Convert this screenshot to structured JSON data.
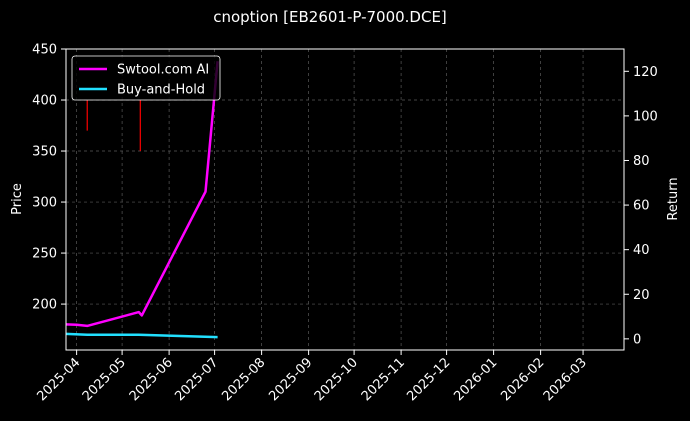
{
  "chart_data": {
    "type": "line",
    "title": "cnoption [EB2601-P-7000.DCE]",
    "ylabel": "Price",
    "y2label": "Return",
    "ylim": [
      155,
      450
    ],
    "y2lim": [
      -5,
      130
    ],
    "xlim": [
      "2025-03-25",
      "2026-03-28"
    ],
    "yticks": [
      200,
      250,
      300,
      350,
      400,
      450
    ],
    "yticks_extra": [],
    "y2ticks": [
      0,
      20,
      40,
      60,
      80,
      100,
      120
    ],
    "xticks": [
      "2025-04",
      "2025-05",
      "2025-06",
      "2025-07",
      "2025-08",
      "2025-09",
      "2025-10",
      "2025-11",
      "2025-12",
      "2026-01",
      "2026-02",
      "2026-03"
    ],
    "grid": true,
    "legend_position": "top-left",
    "series": [
      {
        "name": "Swtool.com AI",
        "axis": "right",
        "color": "#ff00ff",
        "x": [
          "2025-03-25",
          "2025-04-01",
          "2025-04-08",
          "2025-05-12",
          "2025-05-14",
          "2025-06-25",
          "2025-07-03"
        ],
        "values": [
          6.5,
          6.3,
          5.8,
          12.0,
          10.5,
          66.0,
          124.5
        ]
      },
      {
        "name": "Buy-and-Hold",
        "axis": "right",
        "color": "#22e0ff",
        "x": [
          "2025-03-25",
          "2025-04-08",
          "2025-05-12",
          "2025-07-03"
        ],
        "values": [
          2.2,
          1.8,
          1.8,
          0.8
        ]
      }
    ],
    "signals": [
      {
        "x": "2025-04-08",
        "from": 400,
        "to": 370,
        "color": "#ff0000"
      },
      {
        "x": "2025-05-13",
        "from": 400,
        "to": 350,
        "color": "#ff0000"
      }
    ]
  }
}
